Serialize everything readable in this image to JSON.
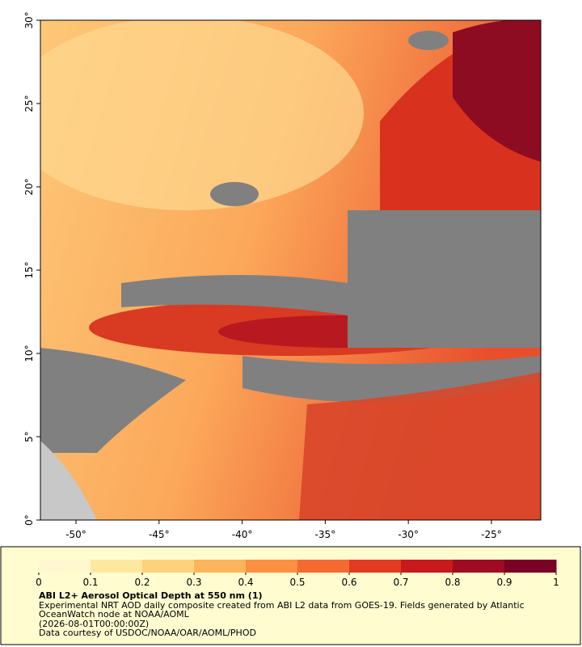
{
  "map": {
    "xlim": [
      -52.14,
      -22.03
    ],
    "ylim": [
      0,
      30
    ],
    "lon_ticks": [
      {
        "value": -50,
        "label": "-50°"
      },
      {
        "value": -45,
        "label": "-45°"
      },
      {
        "value": -40,
        "label": "-40°"
      },
      {
        "value": -35,
        "label": "-35°"
      },
      {
        "value": -30,
        "label": "-30°"
      },
      {
        "value": -25,
        "label": "-25°"
      }
    ],
    "lat_ticks": [
      {
        "value": 0,
        "label": "0°"
      },
      {
        "value": 5,
        "label": "5°"
      },
      {
        "value": 10,
        "label": "10°"
      },
      {
        "value": 15,
        "label": "15°"
      },
      {
        "value": 20,
        "label": "20°"
      },
      {
        "value": 25,
        "label": "25°"
      },
      {
        "value": 30,
        "label": "30°"
      }
    ]
  },
  "colorbar": {
    "lim": [
      0,
      1
    ],
    "ticks": [
      0,
      0.1,
      0.2,
      0.3,
      0.4,
      0.5,
      0.6,
      0.7,
      0.8,
      0.9,
      1
    ],
    "colors": [
      "#fff7d0",
      "#fee8a0",
      "#fdd27a",
      "#fdb45a",
      "#fc9040",
      "#f56a30",
      "#e33a22",
      "#c81a1c",
      "#a00a22",
      "#7a0026"
    ]
  },
  "caption": {
    "title": "ABI L2+ Aerosol Optical Depth at 550 nm (1)",
    "lines": [
      "Experimental NRT AOD daily composite created from ABI L2 data from GOES-19. Fields generated by Atlantic",
      "OceanWatch node at NOAA/AOML",
      "(2026-08-01T00:00:00Z)",
      "Data courtesy of USDOC/NOAA/OAR/AOML/PHOD"
    ]
  }
}
